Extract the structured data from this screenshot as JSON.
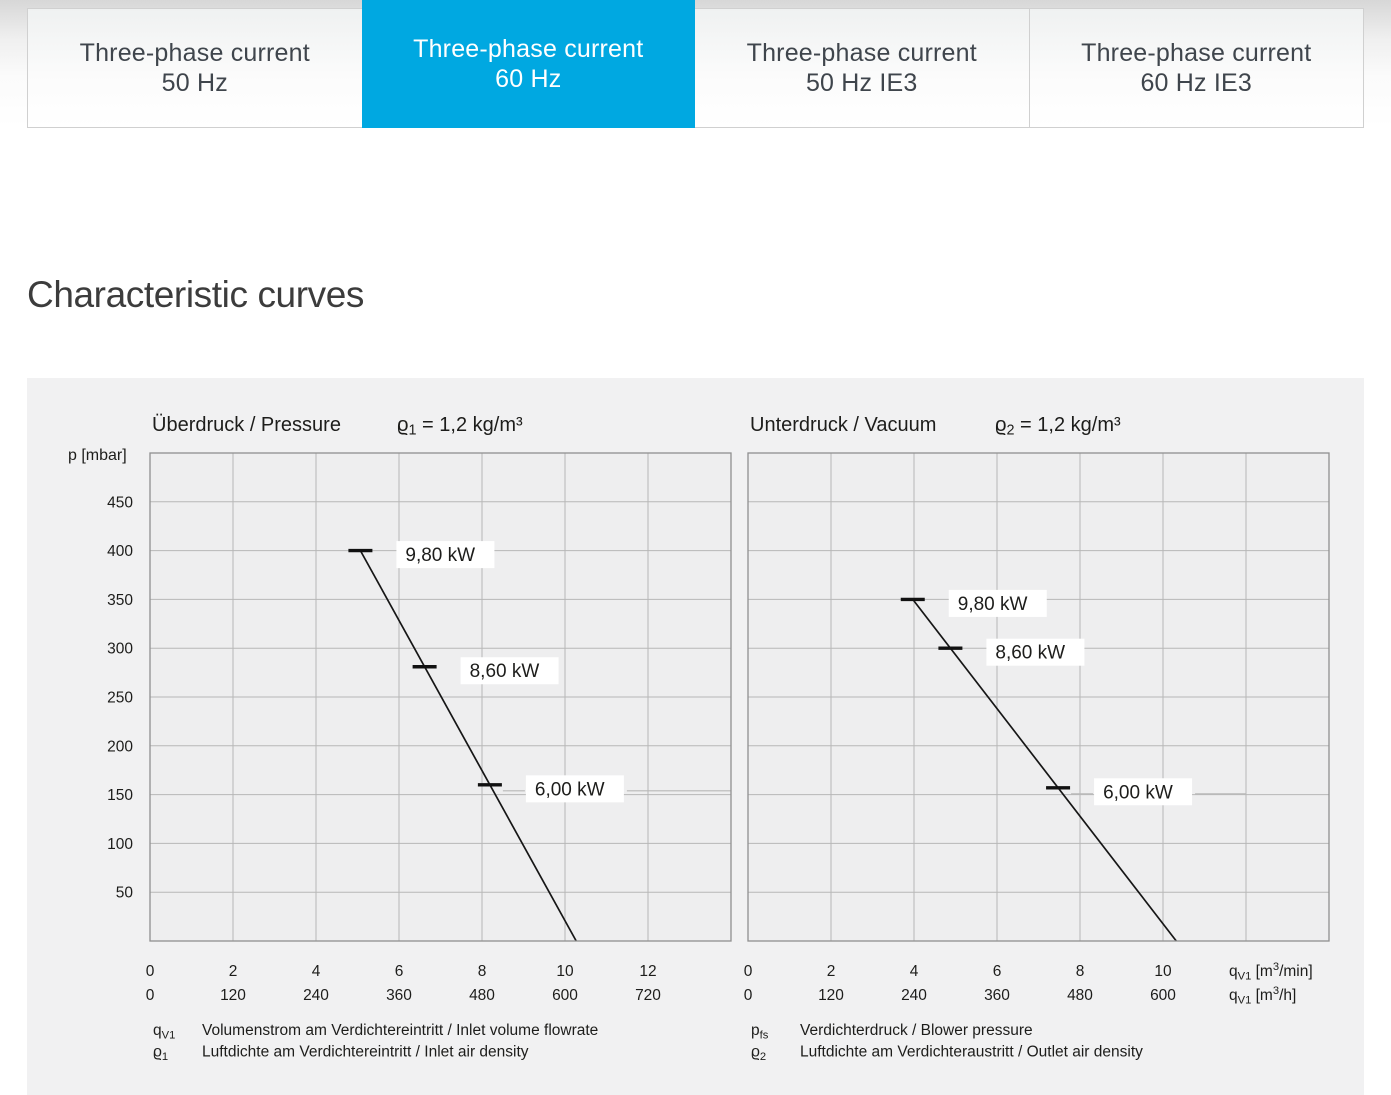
{
  "heading": "Characteristic curves",
  "tabs": [
    {
      "line1": "Three-phase current",
      "line2": "50 Hz",
      "active": false
    },
    {
      "line1": "Three-phase current",
      "line2": "60 Hz",
      "active": true
    },
    {
      "line1": "Three-phase current",
      "line2": "50 Hz IE3",
      "active": false
    },
    {
      "line1": "Three-phase current",
      "line2": "60 Hz IE3",
      "active": false
    }
  ],
  "colors": {
    "accent": "#00a8e1",
    "panel_bg": "#f1f1f2",
    "plot_bg": "#eeeeef",
    "grid": "#b7b7b7",
    "plot_border": "#8f8f8f",
    "curve": "#161616",
    "text": "#1d1d1b",
    "label_bg": "#ffffff"
  },
  "chart_data": [
    {
      "type": "line",
      "title": "Überdruck / Pressure",
      "density": "ϱ_1_ = 1,2 kg/m³",
      "y_axis_label": "p [mbar]",
      "x_range": [
        0,
        14
      ],
      "x_step": 2,
      "y_range": [
        0,
        500
      ],
      "y_step": 50,
      "grid": "on",
      "y_ticks": [
        "450",
        "400",
        "350",
        "300",
        "250",
        "200",
        "150",
        "100",
        "50"
      ],
      "x_ticks_m3min": [
        "0",
        "2",
        "4",
        "6",
        "8",
        "10",
        "12"
      ],
      "x_ticks_m3h": [
        "0",
        "120",
        "240",
        "360",
        "480",
        "600",
        "720"
      ],
      "curve_points": [
        {
          "x": 5.07,
          "p": 400
        },
        {
          "x": 10.27,
          "p": 0
        }
      ],
      "power_marks": [
        {
          "label": "9,80 kW",
          "p": 400
        },
        {
          "label": "8,60 kW",
          "p": 281
        },
        {
          "label": "6,00 kW",
          "p": 160,
          "leader_to_x": 14
        }
      ],
      "legend": [
        {
          "symbol": "q_V1_",
          "text": "Volumenstrom am Verdichtereintritt / Inlet volume flowrate"
        },
        {
          "symbol": "ϱ_1_",
          "text": "Luftdichte am Verdichtereintritt / Inlet air density"
        }
      ]
    },
    {
      "type": "line",
      "title": "Unterdruck / Vacuum",
      "density": "ϱ_2_ = 1,2 kg/m³",
      "x_range": [
        0,
        14
      ],
      "x_step": 2,
      "y_range": [
        0,
        500
      ],
      "y_step": 50,
      "grid": "on",
      "x_ticks_m3min": [
        "0",
        "2",
        "4",
        "6",
        "8",
        "10"
      ],
      "x_ticks_m3h": [
        "0",
        "120",
        "240",
        "360",
        "480",
        "600"
      ],
      "x_unit_row1": "q_V1_ [m^3^/min]",
      "x_unit_row2": "q_V1_ [m^3^/h]",
      "curve_points": [
        {
          "x": 3.97,
          "p": 350
        },
        {
          "x": 10.32,
          "p": 0
        }
      ],
      "power_marks": [
        {
          "label": "9,80 kW",
          "p": 350
        },
        {
          "label": "8,60 kW",
          "p": 300
        },
        {
          "label": "6,00 kW",
          "p": 157,
          "leader_to_x": 12
        }
      ],
      "legend": [
        {
          "symbol": "p_fs_",
          "text": "Verdichterdruck / Blower pressure"
        },
        {
          "symbol": "ϱ_2_",
          "text": "Luftdichte am Verdichteraustritt / Outlet air density"
        }
      ]
    }
  ]
}
